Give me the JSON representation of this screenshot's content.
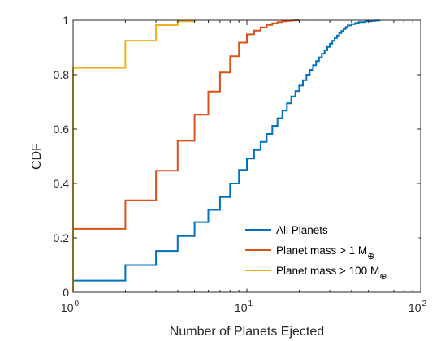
{
  "chart_data": {
    "type": "line",
    "title": "",
    "xlabel": "Number of Planets Ejected",
    "ylabel": "CDF",
    "xscale": "log",
    "xlim": [
      1,
      100
    ],
    "ylim": [
      0,
      1
    ],
    "grid": false,
    "legend_position": "bottom-right",
    "x_ticks": [
      {
        "base": "10",
        "exp": "0",
        "value": 1
      },
      {
        "base": "10",
        "exp": "1",
        "value": 10
      },
      {
        "base": "10",
        "exp": "2",
        "value": 100
      }
    ],
    "y_ticks": [
      {
        "label": "0",
        "value": 0
      },
      {
        "label": "0.2",
        "value": 0.2
      },
      {
        "label": "0.4",
        "value": 0.4
      },
      {
        "label": "0.6",
        "value": 0.6
      },
      {
        "label": "0.8",
        "value": 0.8
      },
      {
        "label": "1",
        "value": 1
      }
    ],
    "series": [
      {
        "name": "All Planets",
        "name_subscript": "",
        "color": "#0072BD",
        "x": [
          1,
          2,
          3,
          4,
          5,
          6,
          7,
          8,
          9,
          10,
          11,
          12,
          13,
          14,
          15,
          16,
          17,
          18,
          19,
          20,
          21,
          22,
          23,
          24,
          25,
          26,
          27,
          28,
          29,
          30,
          31,
          32,
          33,
          34,
          35,
          36,
          37,
          38,
          40,
          42,
          44,
          48,
          52,
          55,
          58
        ],
        "y": [
          0.043,
          0.1,
          0.152,
          0.207,
          0.258,
          0.303,
          0.35,
          0.4,
          0.45,
          0.492,
          0.523,
          0.553,
          0.582,
          0.612,
          0.64,
          0.668,
          0.695,
          0.72,
          0.74,
          0.76,
          0.78,
          0.8,
          0.818,
          0.835,
          0.85,
          0.864,
          0.877,
          0.89,
          0.902,
          0.914,
          0.925,
          0.935,
          0.944,
          0.953,
          0.961,
          0.968,
          0.975,
          0.981,
          0.986,
          0.99,
          0.993,
          0.996,
          0.998,
          0.999,
          1.0
        ]
      },
      {
        "name": "Planet mass > 1 M",
        "name_subscript": "⊕",
        "color": "#D95319",
        "x": [
          1,
          2,
          3,
          4,
          5,
          6,
          7,
          8,
          9,
          10,
          11,
          12,
          13,
          14,
          15,
          16,
          17,
          18,
          19,
          20
        ],
        "y": [
          0.233,
          0.338,
          0.447,
          0.557,
          0.653,
          0.738,
          0.808,
          0.868,
          0.918,
          0.948,
          0.962,
          0.974,
          0.983,
          0.989,
          0.993,
          0.996,
          0.998,
          0.999,
          1.0,
          1.0
        ]
      },
      {
        "name": "Planet mass > 100 M",
        "name_subscript": "⊕",
        "color": "#EDB120",
        "x": [
          1,
          2,
          3,
          4,
          5
        ],
        "y": [
          0.825,
          0.925,
          0.982,
          0.996,
          1.0
        ]
      }
    ]
  }
}
